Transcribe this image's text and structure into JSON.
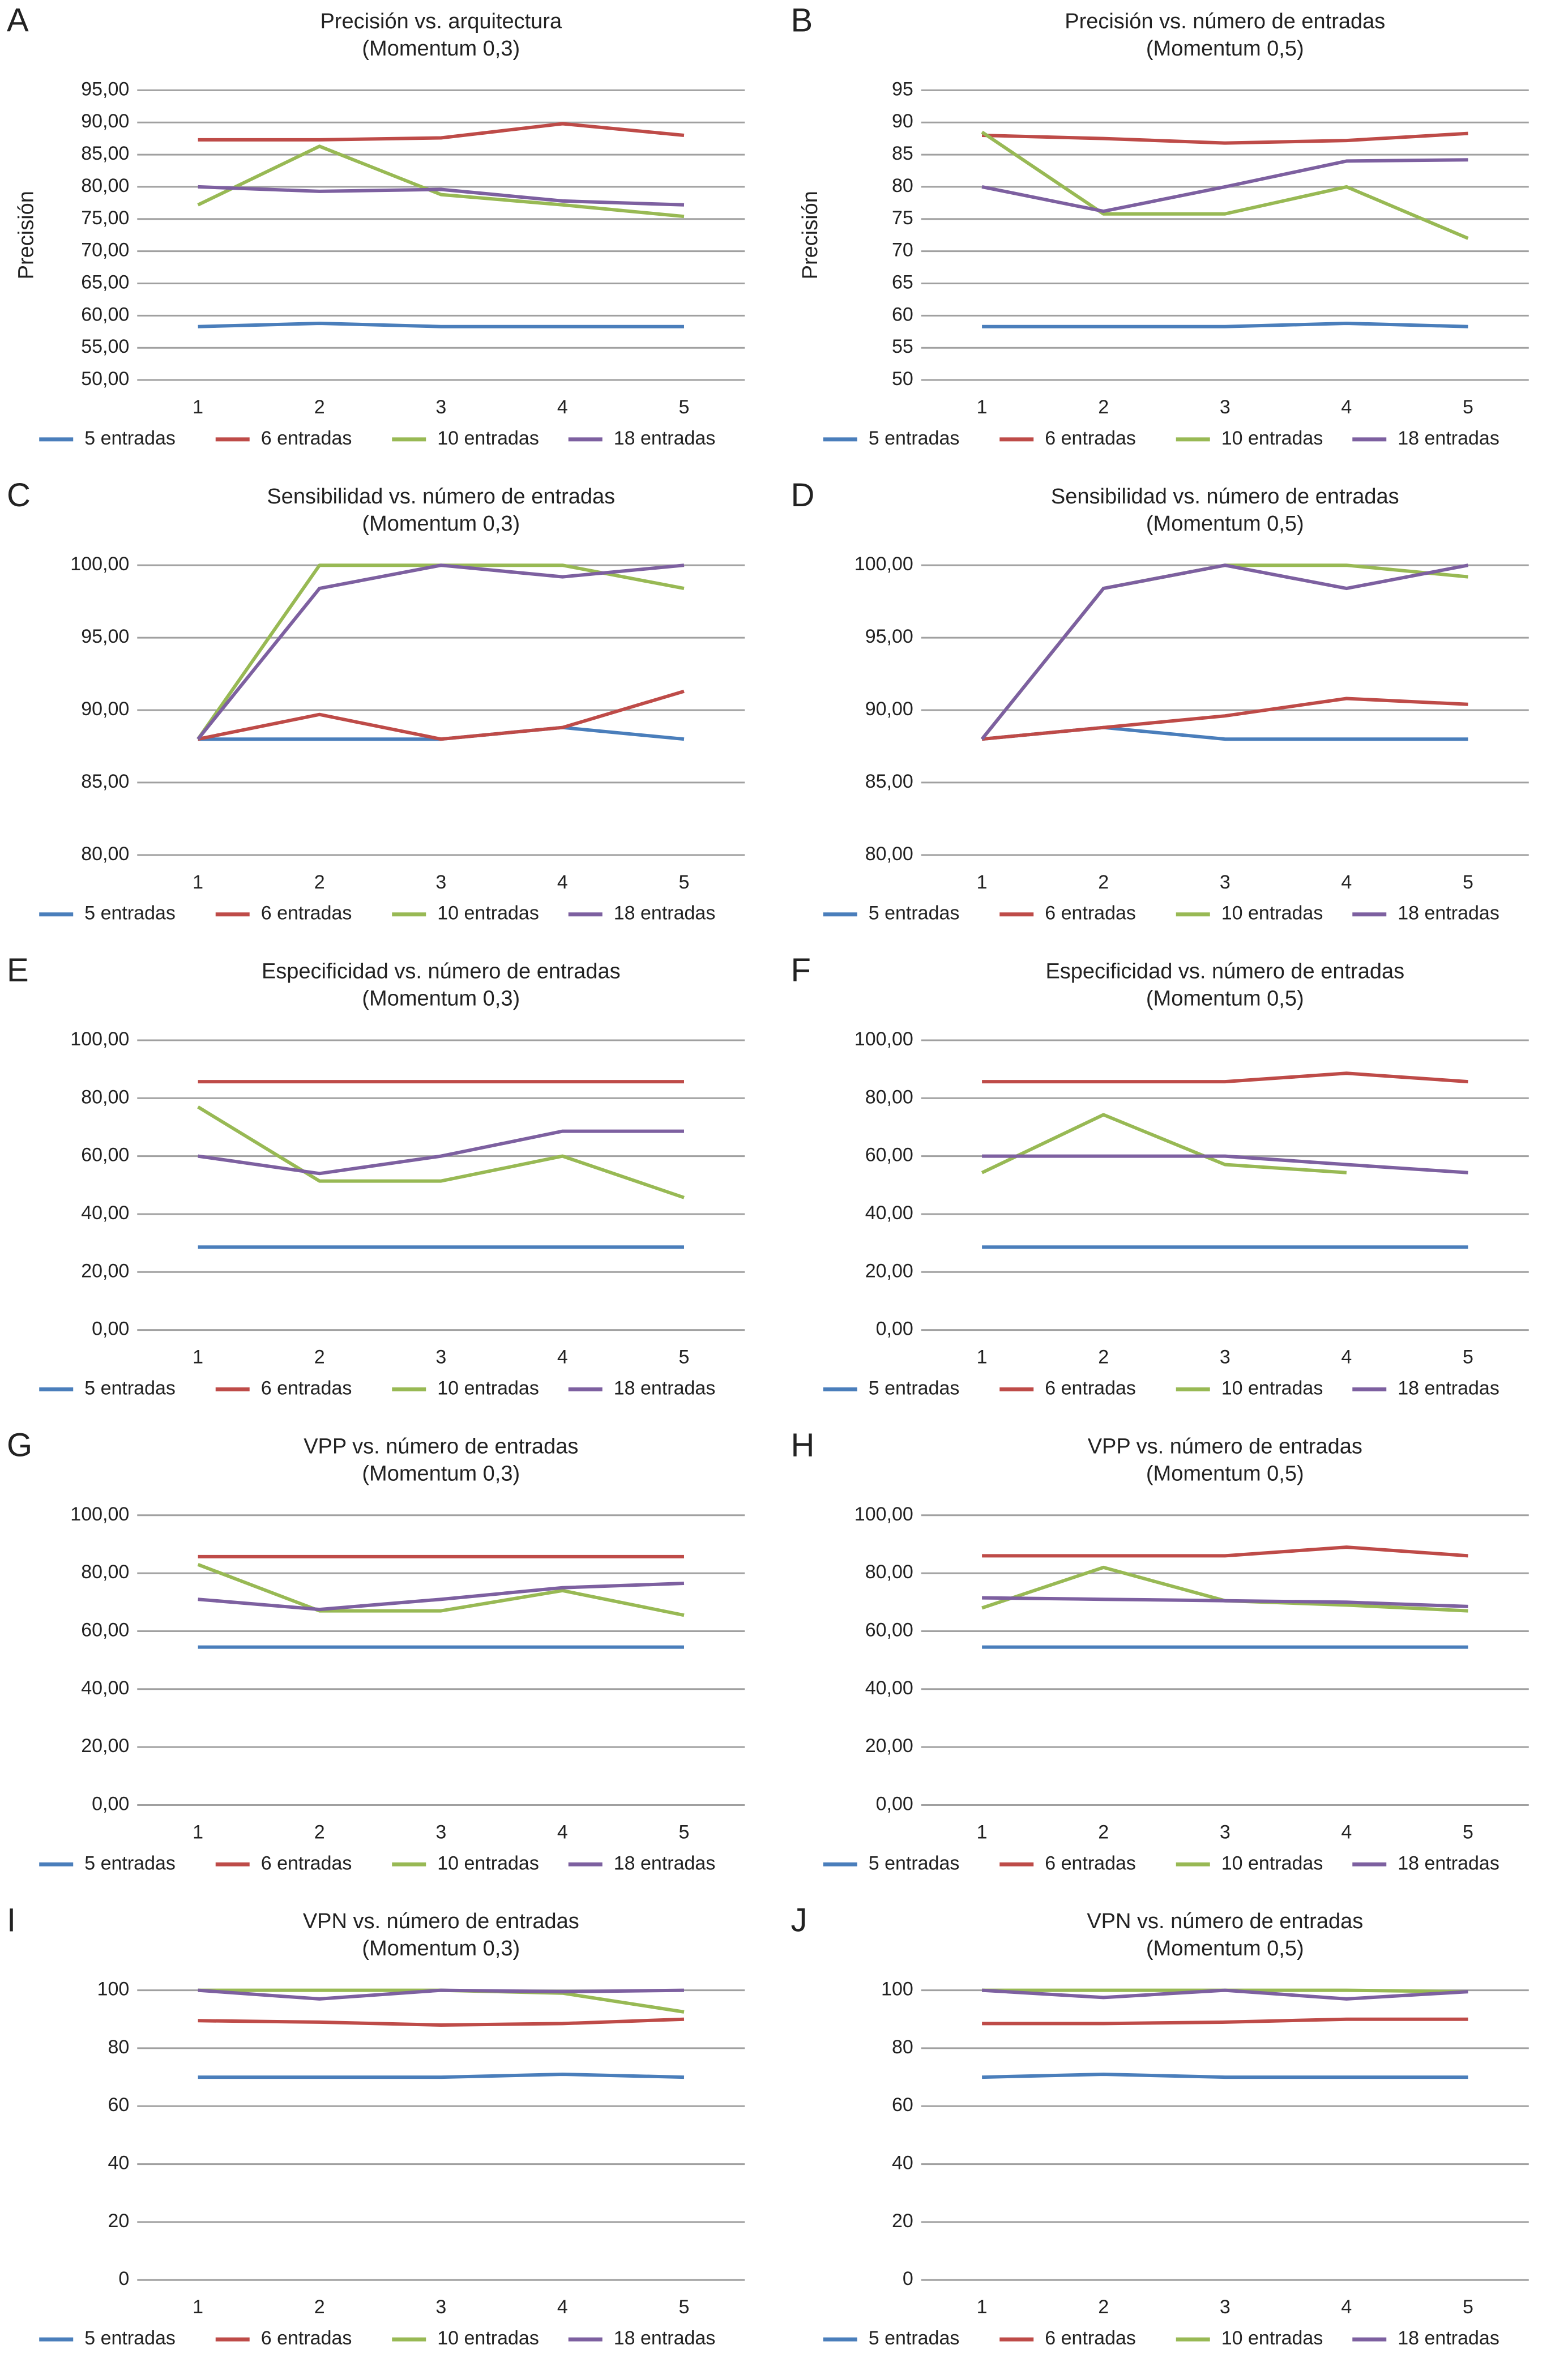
{
  "chart_data": [
    {
      "type": "line",
      "panel": "A",
      "title": "Precisión vs. arquitectura",
      "subtitle": "(Momentum 0,3)",
      "ylabel": "Precisión",
      "categories": [
        "1",
        "2",
        "3",
        "4",
        "5"
      ],
      "series": [
        {
          "name": "5 entradas",
          "color": "#4a7ebb",
          "values": [
            58.3,
            58.8,
            58.3,
            58.3,
            58.3
          ]
        },
        {
          "name": "6 entradas",
          "color": "#be4b48",
          "values": [
            87.3,
            87.3,
            87.6,
            89.8,
            88.0
          ]
        },
        {
          "name": "10 entradas",
          "color": "#98b954",
          "values": [
            77.2,
            86.3,
            78.8,
            77.2,
            75.4
          ]
        },
        {
          "name": "18 entradas",
          "color": "#7d60a0",
          "values": [
            80.0,
            79.3,
            79.6,
            77.8,
            77.2
          ]
        }
      ],
      "ylim": [
        50,
        95
      ],
      "yticks": [
        {
          "value": 50,
          "label": "50,00"
        },
        {
          "value": 55,
          "label": "55,00"
        },
        {
          "value": 60,
          "label": "60,00"
        },
        {
          "value": 65,
          "label": "65,00"
        },
        {
          "value": 70,
          "label": "70,00"
        },
        {
          "value": 75,
          "label": "75,00"
        },
        {
          "value": 80,
          "label": "80,00"
        },
        {
          "value": 85,
          "label": "85,00"
        },
        {
          "value": 90,
          "label": "90,00"
        },
        {
          "value": 95,
          "label": "95,00"
        }
      ],
      "grid": true,
      "legend": "bottom"
    },
    {
      "type": "line",
      "panel": "B",
      "title": "Precisión vs. número de entradas",
      "subtitle": "(Momentum 0,5)",
      "ylabel": "Precisión",
      "categories": [
        "1",
        "2",
        "3",
        "4",
        "5"
      ],
      "series": [
        {
          "name": "5 entradas",
          "color": "#4a7ebb",
          "values": [
            58.3,
            58.3,
            58.3,
            58.8,
            58.3
          ]
        },
        {
          "name": "6 entradas",
          "color": "#be4b48",
          "values": [
            88.0,
            87.5,
            86.8,
            87.2,
            88.3
          ]
        },
        {
          "name": "10 entradas",
          "color": "#98b954",
          "values": [
            88.5,
            75.8,
            75.8,
            80.0,
            72.0
          ]
        },
        {
          "name": "18 entradas",
          "color": "#7d60a0",
          "values": [
            80.0,
            76.2,
            80.0,
            84.0,
            84.2
          ]
        }
      ],
      "ylim": [
        50,
        95
      ],
      "yticks": [
        50,
        55,
        60,
        65,
        70,
        75,
        80,
        85,
        90,
        95
      ],
      "grid": true,
      "legend": "bottom"
    },
    {
      "type": "line",
      "panel": "C",
      "title": "Sensibilidad vs. número de entradas",
      "subtitle": "(Momentum 0,3)",
      "categories": [
        "1",
        "2",
        "3",
        "4",
        "5"
      ],
      "series": [
        {
          "name": "5 entradas",
          "color": "#4a7ebb",
          "values": [
            88.0,
            88.0,
            88.0,
            88.8,
            88.0
          ]
        },
        {
          "name": "6 entradas",
          "color": "#be4b48",
          "values": [
            88.0,
            89.7,
            88.0,
            88.8,
            91.3
          ]
        },
        {
          "name": "10 entradas",
          "color": "#98b954",
          "values": [
            88.0,
            100.0,
            100.0,
            100.0,
            98.4
          ]
        },
        {
          "name": "18 entradas",
          "color": "#7d60a0",
          "values": [
            88.0,
            98.4,
            100.0,
            99.2,
            100.0
          ]
        }
      ],
      "ylim": [
        80,
        100
      ],
      "yticks": [
        {
          "value": 80,
          "label": "80,00"
        },
        {
          "value": 85,
          "label": "85,00"
        },
        {
          "value": 90,
          "label": "90,00"
        },
        {
          "value": 95,
          "label": "95,00"
        },
        {
          "value": 100,
          "label": "100,00"
        }
      ],
      "grid": true,
      "legend": "bottom"
    },
    {
      "type": "line",
      "panel": "D",
      "title": "Sensibilidad vs. número de entradas",
      "subtitle": "(Momentum 0,5)",
      "categories": [
        "1",
        "2",
        "3",
        "4",
        "5"
      ],
      "series": [
        {
          "name": "5 entradas",
          "color": "#4a7ebb",
          "values": [
            88.0,
            88.8,
            88.0,
            88.0,
            88.0
          ]
        },
        {
          "name": "6 entradas",
          "color": "#be4b48",
          "values": [
            88.0,
            88.8,
            89.6,
            90.8,
            90.4
          ]
        },
        {
          "name": "10 entradas",
          "color": "#98b954",
          "values": [
            88.0,
            98.4,
            100.0,
            100.0,
            99.2
          ]
        },
        {
          "name": "18 entradas",
          "color": "#7d60a0",
          "values": [
            88.0,
            98.4,
            100.0,
            98.4,
            100.0
          ]
        }
      ],
      "ylim": [
        80,
        100
      ],
      "yticks": [
        {
          "value": 80,
          "label": "80,00"
        },
        {
          "value": 85,
          "label": "85,00"
        },
        {
          "value": 90,
          "label": "90,00"
        },
        {
          "value": 95,
          "label": "95,00"
        },
        {
          "value": 100,
          "label": "100,00"
        }
      ],
      "grid": true,
      "legend": "bottom"
    },
    {
      "type": "line",
      "panel": "E",
      "title": "Especificidad vs. número de entradas",
      "subtitle": "(Momentum 0,3)",
      "categories": [
        "1",
        "2",
        "3",
        "4",
        "5"
      ],
      "series": [
        {
          "name": "5 entradas",
          "color": "#4a7ebb",
          "values": [
            28.6,
            28.6,
            28.6,
            28.6,
            28.6
          ]
        },
        {
          "name": "6 entradas",
          "color": "#be4b48",
          "values": [
            85.7,
            85.7,
            85.7,
            85.7,
            85.7
          ]
        },
        {
          "name": "10 entradas",
          "color": "#98b954",
          "values": [
            77.0,
            51.4,
            51.4,
            60.0,
            45.7
          ]
        },
        {
          "name": "18 entradas",
          "color": "#7d60a0",
          "values": [
            60.0,
            54.0,
            60.0,
            68.6,
            68.6
          ]
        }
      ],
      "ylim": [
        0,
        100
      ],
      "yticks": [
        {
          "value": 0,
          "label": "0,00"
        },
        {
          "value": 20,
          "label": "20,00"
        },
        {
          "value": 40,
          "label": "40,00"
        },
        {
          "value": 60,
          "label": "60,00"
        },
        {
          "value": 80,
          "label": "80,00"
        },
        {
          "value": 100,
          "label": "100,00"
        }
      ],
      "grid": true,
      "legend": "bottom"
    },
    {
      "type": "line",
      "panel": "F",
      "title": "Especificidad vs. número de entradas",
      "subtitle": "(Momentum 0,5)",
      "categories": [
        "1",
        "2",
        "3",
        "4",
        "5"
      ],
      "series": [
        {
          "name": "5 entradas",
          "color": "#4a7ebb",
          "values": [
            28.6,
            28.6,
            28.6,
            28.6,
            28.6
          ]
        },
        {
          "name": "6 entradas",
          "color": "#be4b48",
          "values": [
            85.7,
            85.7,
            85.7,
            88.6,
            85.7
          ]
        },
        {
          "name": "10 entradas",
          "color": "#98b954",
          "values": [
            54.3,
            74.3,
            57.1,
            54.3,
            null
          ]
        },
        {
          "name": "18 entradas",
          "color": "#7d60a0",
          "values": [
            60.0,
            60.0,
            60.0,
            57.1,
            54.3
          ]
        }
      ],
      "ylim": [
        0,
        100
      ],
      "yticks": [
        {
          "value": 0,
          "label": "0,00"
        },
        {
          "value": 20,
          "label": "20,00"
        },
        {
          "value": 40,
          "label": "40,00"
        },
        {
          "value": 60,
          "label": "60,00"
        },
        {
          "value": 80,
          "label": "80,00"
        },
        {
          "value": 100,
          "label": "100,00"
        }
      ],
      "grid": true,
      "legend": "bottom"
    },
    {
      "type": "line",
      "panel": "G",
      "title": "VPP vs. número de entradas",
      "subtitle": "(Momentum 0,3)",
      "categories": [
        "1",
        "2",
        "3",
        "4",
        "5"
      ],
      "series": [
        {
          "name": "5 entradas",
          "color": "#4a7ebb",
          "values": [
            54.5,
            54.5,
            54.5,
            54.5,
            54.5
          ]
        },
        {
          "name": "6 entradas",
          "color": "#be4b48",
          "values": [
            85.7,
            85.7,
            85.7,
            85.7,
            85.7
          ]
        },
        {
          "name": "10 entradas",
          "color": "#98b954",
          "values": [
            83.0,
            67.0,
            67.0,
            74.0,
            65.5
          ]
        },
        {
          "name": "18 entradas",
          "color": "#7d60a0",
          "values": [
            71.0,
            67.5,
            71.0,
            75.0,
            76.5
          ]
        }
      ],
      "ylim": [
        0,
        100
      ],
      "yticks": [
        {
          "value": 0,
          "label": "0,00"
        },
        {
          "value": 20,
          "label": "20,00"
        },
        {
          "value": 40,
          "label": "40,00"
        },
        {
          "value": 60,
          "label": "60,00"
        },
        {
          "value": 80,
          "label": "80,00"
        },
        {
          "value": 100,
          "label": "100,00"
        }
      ],
      "grid": true,
      "legend": "bottom"
    },
    {
      "type": "line",
      "panel": "H",
      "title": "VPP vs. número de entradas",
      "subtitle": "(Momentum 0,5)",
      "categories": [
        "1",
        "2",
        "3",
        "4",
        "5"
      ],
      "series": [
        {
          "name": "5 entradas",
          "color": "#4a7ebb",
          "values": [
            54.5,
            54.5,
            54.5,
            54.5,
            54.5
          ]
        },
        {
          "name": "6 entradas",
          "color": "#be4b48",
          "values": [
            86.0,
            86.0,
            86.0,
            89.0,
            86.0
          ]
        },
        {
          "name": "10 entradas",
          "color": "#98b954",
          "values": [
            68.0,
            82.0,
            70.5,
            69.0,
            67.0
          ]
        },
        {
          "name": "18 entradas",
          "color": "#7d60a0",
          "values": [
            71.5,
            71.0,
            70.5,
            70.0,
            68.5
          ]
        }
      ],
      "ylim": [
        0,
        100
      ],
      "yticks": [
        {
          "value": 0,
          "label": "0,00"
        },
        {
          "value": 20,
          "label": "20,00"
        },
        {
          "value": 40,
          "label": "40,00"
        },
        {
          "value": 60,
          "label": "60,00"
        },
        {
          "value": 80,
          "label": "80,00"
        },
        {
          "value": 100,
          "label": "100,00"
        }
      ],
      "grid": true,
      "legend": "bottom"
    },
    {
      "type": "line",
      "panel": "I",
      "title": "VPN vs. número de entradas",
      "subtitle": "(Momentum 0,3)",
      "categories": [
        "1",
        "2",
        "3",
        "4",
        "5"
      ],
      "series": [
        {
          "name": "5 entradas",
          "color": "#4a7ebb",
          "values": [
            70.0,
            70.0,
            70.0,
            71.0,
            70.0
          ]
        },
        {
          "name": "6 entradas",
          "color": "#be4b48",
          "values": [
            89.5,
            89.0,
            88.0,
            88.5,
            90.0
          ]
        },
        {
          "name": "10 entradas",
          "color": "#98b954",
          "values": [
            100.0,
            100.0,
            100.0,
            99.0,
            92.5
          ]
        },
        {
          "name": "18 entradas",
          "color": "#7d60a0",
          "values": [
            100.0,
            97.0,
            100.0,
            99.5,
            100.0
          ]
        }
      ],
      "ylim": [
        0,
        100
      ],
      "yticks": [
        0,
        20,
        40,
        60,
        80,
        100
      ],
      "grid": true,
      "legend": "bottom"
    },
    {
      "type": "line",
      "panel": "J",
      "title": "VPN vs. número de entradas",
      "subtitle": "(Momentum 0,5)",
      "categories": [
        "1",
        "2",
        "3",
        "4",
        "5"
      ],
      "series": [
        {
          "name": "5 entradas",
          "color": "#4a7ebb",
          "values": [
            70.0,
            71.0,
            70.0,
            70.0,
            70.0
          ]
        },
        {
          "name": "6 entradas",
          "color": "#be4b48",
          "values": [
            88.5,
            88.5,
            89.0,
            90.0,
            90.0
          ]
        },
        {
          "name": "10 entradas",
          "color": "#98b954",
          "values": [
            100.0,
            100.0,
            100.0,
            100.0,
            99.5
          ]
        },
        {
          "name": "18 entradas",
          "color": "#7d60a0",
          "values": [
            100.0,
            97.5,
            100.0,
            97.0,
            99.5
          ]
        }
      ],
      "ylim": [
        0,
        100
      ],
      "yticks": [
        0,
        20,
        40,
        60,
        80,
        100
      ],
      "grid": true,
      "legend": "bottom"
    }
  ]
}
